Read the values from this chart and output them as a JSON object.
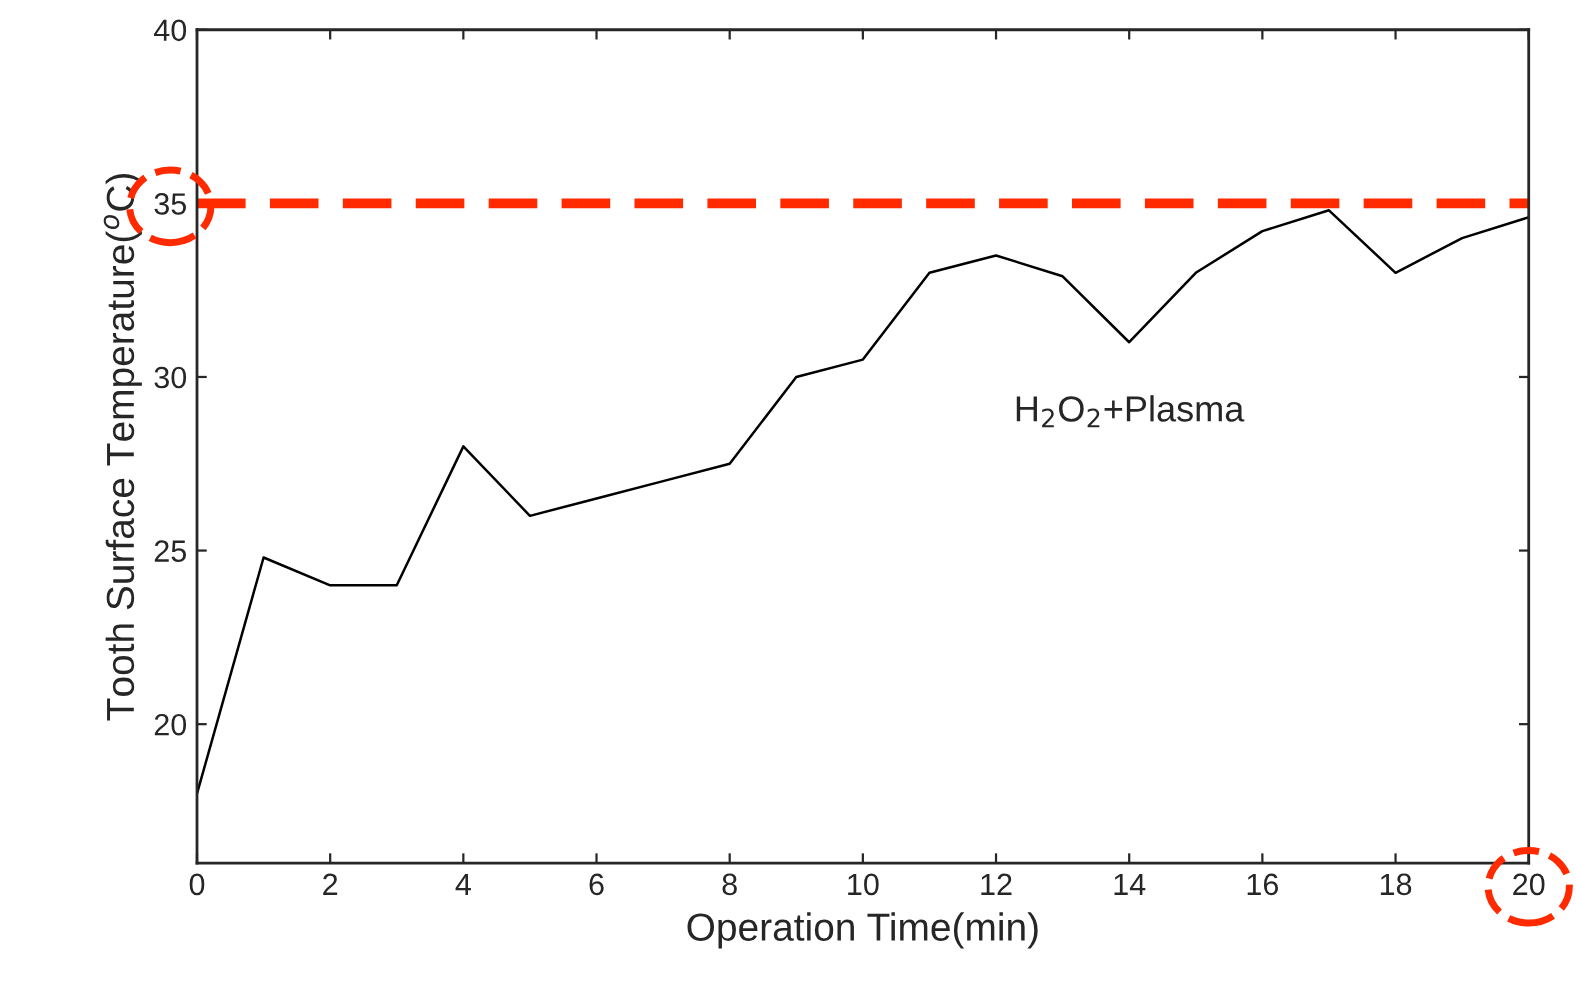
{
  "chart_data": {
    "type": "line",
    "xlabel": "Operation Time(min)",
    "ylabel": "Tooth Surface Temperature($^{o}$C)",
    "x": [
      0,
      1,
      2,
      3,
      4,
      5,
      6,
      7,
      8,
      9,
      10,
      11,
      12,
      13,
      14,
      15,
      16,
      17,
      18,
      19,
      20
    ],
    "series": [
      {
        "name": "H$_{2}$O$_{2}$+Plasma",
        "color": "#000000",
        "values": [
          18,
          24.8,
          24,
          24,
          28,
          26,
          26.5,
          27,
          27.5,
          30,
          30.5,
          33,
          33.5,
          32.9,
          31,
          33,
          34.2,
          34.8,
          33,
          34,
          34.6
        ]
      }
    ],
    "xlim": [
      0,
      20
    ],
    "xticks": [
      0,
      2,
      4,
      6,
      8,
      10,
      12,
      14,
      16,
      18,
      20
    ],
    "ylim": [
      16,
      40
    ],
    "yticks": [
      20,
      25,
      30,
      35,
      40
    ],
    "ref_lines": [
      {
        "axis": "y",
        "value": 35,
        "label": null,
        "color": "#ff2a00",
        "line_style": "dashed"
      }
    ],
    "grid": false,
    "legend": false,
    "marker": "none",
    "line_style": "solid"
  }
}
